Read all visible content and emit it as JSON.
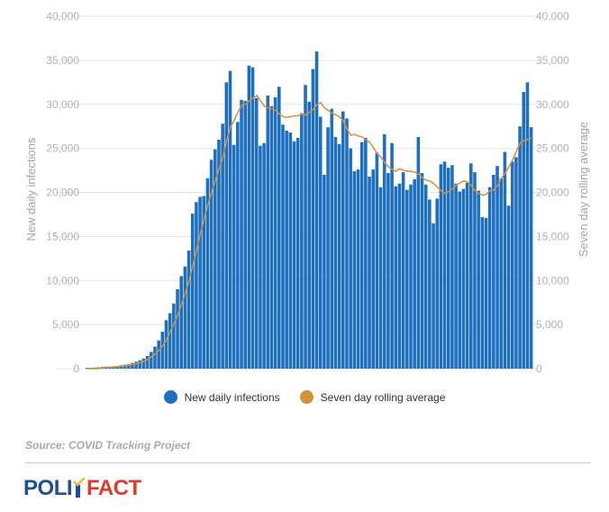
{
  "chart_data": {
    "type": "bar",
    "y_ticks": [
      "0",
      "5,000",
      "10,000",
      "15,000",
      "20,000",
      "25,000",
      "30,000",
      "35,000",
      "40,000"
    ],
    "ylabel": "New daily infections",
    "ylabel_right": "Seven day rolling average",
    "ylim": [
      0,
      40000
    ],
    "grid": true,
    "series": [
      {
        "name": "New daily infections",
        "color": "#1f6fbf",
        "type": "bar",
        "values": [
          100,
          110,
          120,
          150,
          180,
          220,
          210,
          260,
          300,
          380,
          450,
          500,
          640,
          780,
          950,
          1150,
          1450,
          1900,
          2500,
          3200,
          4200,
          5500,
          6300,
          7400,
          9000,
          10500,
          11600,
          13400,
          17600,
          18900,
          19500,
          19600,
          21600,
          23700,
          24900,
          26000,
          27800,
          32500,
          33800,
          25400,
          28000,
          30500,
          30400,
          34400,
          34200,
          30700,
          25300,
          25600,
          31000,
          29800,
          30800,
          32000,
          27700,
          27000,
          26800,
          25800,
          26200,
          29000,
          32200,
          30300,
          34000,
          36000,
          28600,
          22000,
          27400,
          29500,
          26300,
          25500,
          29200,
          28400,
          25000,
          22400,
          22600,
          25700,
          26200,
          21800,
          22600,
          24500,
          20600,
          26600,
          22200,
          25600,
          20700,
          21000,
          22300,
          20300,
          20900,
          21500,
          26300,
          22200,
          20900,
          19200,
          16500,
          19300,
          23200,
          23500,
          22800,
          23100,
          21000,
          20100,
          20400,
          21100,
          23300,
          22300,
          20200,
          17200,
          17100,
          20600,
          22000,
          23000,
          21600,
          24600,
          18500,
          23500,
          24000,
          27500,
          31400,
          32500,
          27400
        ]
      },
      {
        "name": "Seven day rolling average",
        "color": "#d4913a",
        "type": "line",
        "values": [
          0,
          0,
          0,
          0,
          130,
          150,
          170,
          200,
          230,
          270,
          320,
          380,
          460,
          560,
          680,
          840,
          1050,
          1330,
          1660,
          2090,
          2600,
          3300,
          4200,
          5100,
          6100,
          7300,
          8600,
          10000,
          11700,
          13500,
          15300,
          17000,
          18600,
          20000,
          21400,
          22700,
          24000,
          25900,
          27400,
          28200,
          29100,
          29900,
          30000,
          30400,
          30700,
          31000,
          30400,
          29800,
          29600,
          29500,
          29300,
          28900,
          28600,
          28500,
          28600,
          28700,
          28700,
          28900,
          28800,
          29100,
          29400,
          30000,
          30200,
          29600,
          29300,
          29000,
          28800,
          28600,
          28100,
          27200,
          26500,
          26600,
          26400,
          26300,
          26000,
          25700,
          25100,
          24400,
          24000,
          23400,
          22900,
          22600,
          22400,
          22700,
          22500,
          22400,
          22400,
          22300,
          22100,
          21700,
          21400,
          21300,
          21000,
          20600,
          20200,
          19900,
          20100,
          20400,
          20800,
          21100,
          21300,
          21200,
          20800,
          20200,
          19900,
          19700,
          19800,
          20200,
          20300,
          20800,
          21600,
          22200,
          22900,
          23700,
          24700,
          25600,
          25900,
          26000,
          26200
        ]
      }
    ]
  },
  "legend": {
    "bars_label": "New daily infections",
    "line_label": "Seven day rolling average"
  },
  "source_text": "Source: COVID Tracking Project",
  "logo": {
    "part1": "PO",
    "part2": "LI",
    "part3": "FACT",
    "colors": {
      "blue": "#1f4e9e",
      "red": "#e03a2e",
      "check": "#f2b632"
    }
  }
}
